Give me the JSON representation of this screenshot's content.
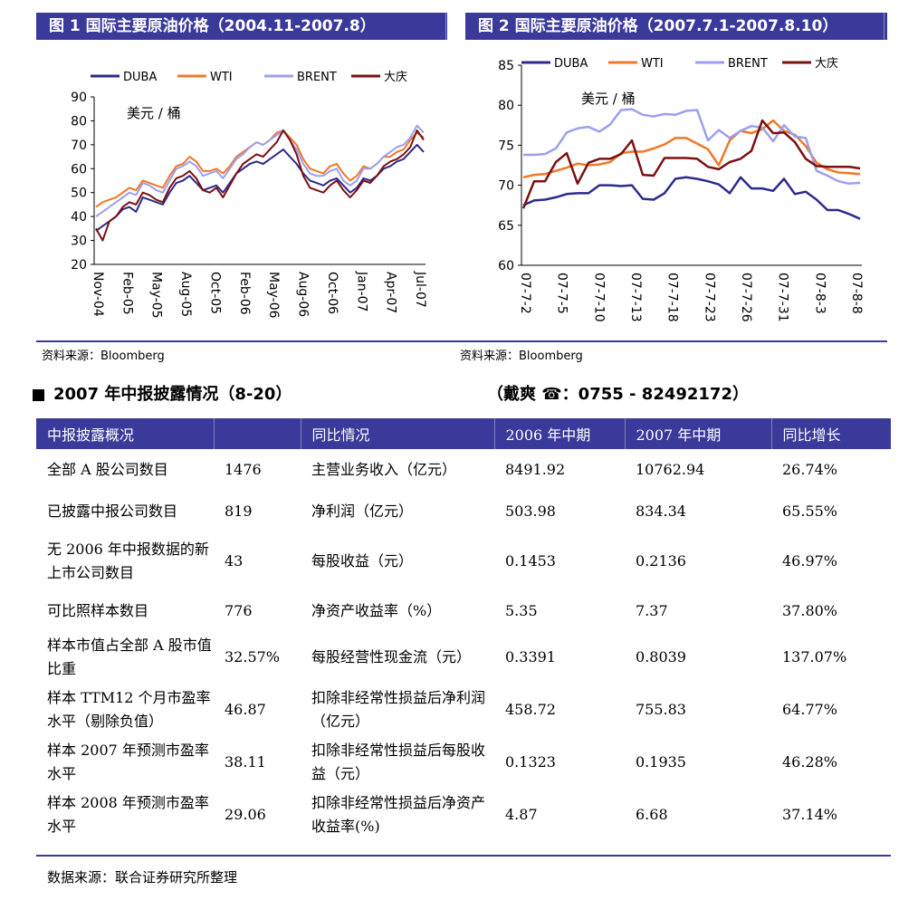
{
  "fig1": {
    "title": "图 1  国际主要原油价格（2004.11-2007.8）"
  },
  "fig2": {
    "title": "图 2  国际主要原油价格（2007.7.1-2007.8.10）"
  },
  "source_left": "资料来源：Bloomberg",
  "source_right": "资料来源：Bloomberg",
  "section_title": "2007 年中报披露情况（8-20）",
  "contact": "（戴爽   ☎：0755 - 82492172）",
  "table": {
    "headers": [
      "中报披露概况",
      "",
      "同比情况",
      "2006 年中期",
      "2007 年中期",
      "同比增长"
    ],
    "rows": [
      [
        "全部 A 股公司数目",
        "1476",
        "主营业务收入（亿元）",
        "8491.92",
        "10762.94",
        "26.74%"
      ],
      [
        "已披露中报公司数目",
        "819",
        "净利润（亿元）",
        "503.98",
        "834.34",
        "65.55%"
      ],
      [
        "无 2006 年中报数据的新上市公司数目",
        "43",
        "每股收益（元）",
        "0.1453",
        "0.2136",
        "46.97%"
      ],
      [
        "可比照样本数目",
        "776",
        "净资产收益率（%）",
        "5.35",
        "7.37",
        "37.80%"
      ],
      [
        "样本市值占全部 A 股市值比重",
        "32.57%",
        "每股经营性现金流（元）",
        "0.3391",
        "0.8039",
        "137.07%"
      ],
      [
        "样本 TTM12 个月市盈率水平（剔除负值）",
        "46.87",
        "扣除非经常性损益后净利润（亿元）",
        "458.72",
        "755.83",
        "64.77%"
      ],
      [
        "样本 2007 年预测市盈率水平",
        "38.11",
        "扣除非经常性损益后每股收益（元）",
        "0.1323",
        "0.1935",
        "46.28%"
      ],
      [
        "样本 2008 年预测市盈率水平",
        "29.06",
        "扣除非经常性损益后净资产收益率(%)",
        "4.87",
        "6.68",
        "37.14%"
      ]
    ]
  },
  "footnote": "数据来源：联合证券研究所整理",
  "chart_data": [
    {
      "type": "line",
      "title": "图 1  国际主要原油价格（2004.11-2007.8）",
      "unit_label": "美元 / 桶",
      "ylim": [
        20,
        90
      ],
      "yticks": [
        20,
        30,
        40,
        50,
        60,
        70,
        80,
        90
      ],
      "x_tick_labels": [
        "Nov-04",
        "Feb-05",
        "May-05",
        "Aug-05",
        "Oct-05",
        "Feb-06",
        "May-06",
        "Aug-06",
        "Oct-06",
        "Jan-07",
        "Apr-07",
        "Jul-07"
      ],
      "legend_position": "top",
      "series": [
        {
          "name": "DUBA",
          "color": "#2b2b8c",
          "values": [
            34,
            36,
            38,
            40,
            43,
            44,
            42,
            48,
            47,
            46,
            45,
            50,
            54,
            55,
            57,
            54,
            51,
            52,
            53,
            50,
            54,
            58,
            60,
            62,
            63,
            62,
            64,
            66,
            68,
            65,
            62,
            58,
            55,
            54,
            53,
            55,
            56,
            53,
            50,
            52,
            56,
            55,
            57,
            60,
            61,
            63,
            64,
            67,
            70,
            67
          ]
        },
        {
          "name": "WTI",
          "color": "#f07828",
          "values": [
            44,
            46,
            47,
            48,
            50,
            52,
            51,
            55,
            54,
            53,
            52,
            57,
            61,
            62,
            65,
            63,
            59,
            59,
            60,
            58,
            61,
            65,
            67,
            69,
            71,
            70,
            72,
            75,
            76,
            73,
            70,
            64,
            60,
            59,
            58,
            61,
            62,
            58,
            55,
            57,
            61,
            60,
            62,
            65,
            65,
            67,
            68,
            72,
            75,
            73
          ]
        },
        {
          "name": "BRENT",
          "color": "#9aa0f0",
          "values": [
            40,
            42,
            44,
            46,
            48,
            50,
            49,
            54,
            53,
            51,
            50,
            55,
            60,
            61,
            63,
            61,
            57,
            58,
            59,
            56,
            60,
            64,
            66,
            69,
            71,
            70,
            72,
            74,
            76,
            72,
            68,
            62,
            58,
            57,
            57,
            59,
            60,
            55,
            53,
            55,
            60,
            60,
            62,
            65,
            67,
            69,
            70,
            73,
            78,
            75
          ]
        },
        {
          "name": "大庆",
          "color": "#7a1010",
          "values": [
            35,
            30,
            38,
            40,
            44,
            46,
            45,
            50,
            49,
            47,
            46,
            52,
            56,
            57,
            59,
            56,
            51,
            50,
            52,
            48,
            53,
            58,
            62,
            64,
            66,
            65,
            68,
            71,
            76,
            72,
            66,
            57,
            52,
            51,
            50,
            53,
            55,
            51,
            48,
            51,
            55,
            54,
            57,
            61,
            63,
            64,
            66,
            69,
            76,
            72
          ]
        }
      ]
    },
    {
      "type": "line",
      "title": "图 2  国际主要原油价格（2007.7.1-2007.8.10）",
      "unit_label": "美元 / 桶",
      "ylim": [
        60,
        85
      ],
      "yticks": [
        60,
        65,
        70,
        75,
        80,
        85
      ],
      "x_tick_labels": [
        "07-7-2",
        "07-7-5",
        "07-7-10",
        "07-7-13",
        "07-7-18",
        "07-7-23",
        "07-7-26",
        "07-7-31",
        "07-8-3",
        "07-8-8"
      ],
      "legend_position": "top",
      "series": [
        {
          "name": "DUBA",
          "color": "#2b2b8c",
          "values": [
            67.5,
            68.1,
            68.2,
            68.5,
            68.9,
            69.0,
            69.0,
            70.0,
            70.0,
            69.9,
            70.0,
            68.3,
            68.2,
            69.0,
            70.8,
            71.0,
            70.8,
            70.5,
            70.1,
            69.0,
            71.0,
            69.6,
            69.6,
            69.3,
            70.8,
            68.9,
            69.2,
            68.2,
            66.9,
            66.9,
            66.4,
            65.8
          ]
        },
        {
          "name": "WTI",
          "color": "#f07828",
          "values": [
            71.0,
            71.3,
            71.4,
            71.8,
            72.2,
            72.7,
            72.5,
            72.6,
            72.9,
            74.0,
            74.2,
            74.2,
            74.6,
            75.1,
            75.9,
            75.9,
            75.2,
            74.5,
            72.5,
            75.6,
            76.8,
            76.5,
            77.0,
            78.1,
            76.8,
            76.3,
            74.9,
            72.8,
            72.0,
            71.6,
            71.5,
            71.4
          ]
        },
        {
          "name": "BRENT",
          "color": "#9aa0f0",
          "values": [
            73.8,
            73.8,
            73.9,
            74.6,
            76.6,
            77.1,
            77.3,
            76.7,
            77.6,
            79.4,
            79.5,
            78.8,
            78.6,
            78.9,
            78.8,
            79.3,
            79.4,
            75.6,
            76.9,
            75.9,
            76.8,
            77.4,
            77.2,
            75.5,
            77.5,
            76.1,
            75.9,
            71.8,
            71.2,
            70.5,
            70.2,
            70.3
          ]
        },
        {
          "name": "大庆",
          "color": "#7a1010",
          "values": [
            67.1,
            70.5,
            70.5,
            72.9,
            74.0,
            70.2,
            72.8,
            73.3,
            73.3,
            73.9,
            75.6,
            71.3,
            71.2,
            73.4,
            73.4,
            73.4,
            73.3,
            72.3,
            72.0,
            72.9,
            73.3,
            74.3,
            78.1,
            76.5,
            76.6,
            75.4,
            73.3,
            72.4,
            72.3,
            72.3,
            72.3,
            72.1
          ]
        }
      ]
    }
  ]
}
